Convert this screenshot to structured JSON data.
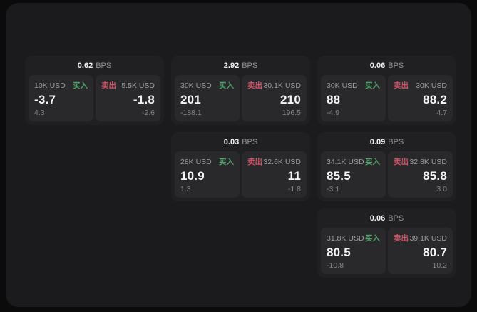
{
  "labels": {
    "bps": "BPS",
    "buy": "买入",
    "sell": "卖出"
  },
  "colors": {
    "page_background": "#0b0b0c",
    "surface": "#1b1b1d",
    "card": "#202022",
    "panel": "#29292b",
    "buy_green": "#52a06b",
    "sell_red": "#cf5468",
    "primary_text": "#f5f5f6",
    "muted_text": "#9d9da0"
  },
  "cards": [
    {
      "bps": "0.62",
      "buy": {
        "size": "10K USD",
        "price": "-3.7",
        "delta": "4.3"
      },
      "sell": {
        "size": "5.5K USD",
        "price": "-1.8",
        "delta": "-2.6"
      }
    },
    {
      "bps": "2.92",
      "buy": {
        "size": "30K USD",
        "price": "201",
        "delta": "-188.1"
      },
      "sell": {
        "size": "30.1K USD",
        "price": "210",
        "delta": "196.5"
      }
    },
    {
      "bps": "0.06",
      "buy": {
        "size": "30K USD",
        "price": "88",
        "delta": "-4.9"
      },
      "sell": {
        "size": "30K USD",
        "price": "88.2",
        "delta": "4.7"
      }
    },
    {
      "bps": "0.03",
      "buy": {
        "size": "28K USD",
        "price": "10.9",
        "delta": "1.3"
      },
      "sell": {
        "size": "32.6K USD",
        "price": "11",
        "delta": "-1.8"
      }
    },
    {
      "bps": "0.09",
      "buy": {
        "size": "34.1K USD",
        "price": "85.5",
        "delta": "-3.1"
      },
      "sell": {
        "size": "32.8K USD",
        "price": "85.8",
        "delta": "3.0"
      }
    },
    {
      "bps": "0.06",
      "buy": {
        "size": "31.8K USD",
        "price": "80.5",
        "delta": "-10.8"
      },
      "sell": {
        "size": "39.1K USD",
        "price": "80.7",
        "delta": "10.2"
      }
    }
  ]
}
